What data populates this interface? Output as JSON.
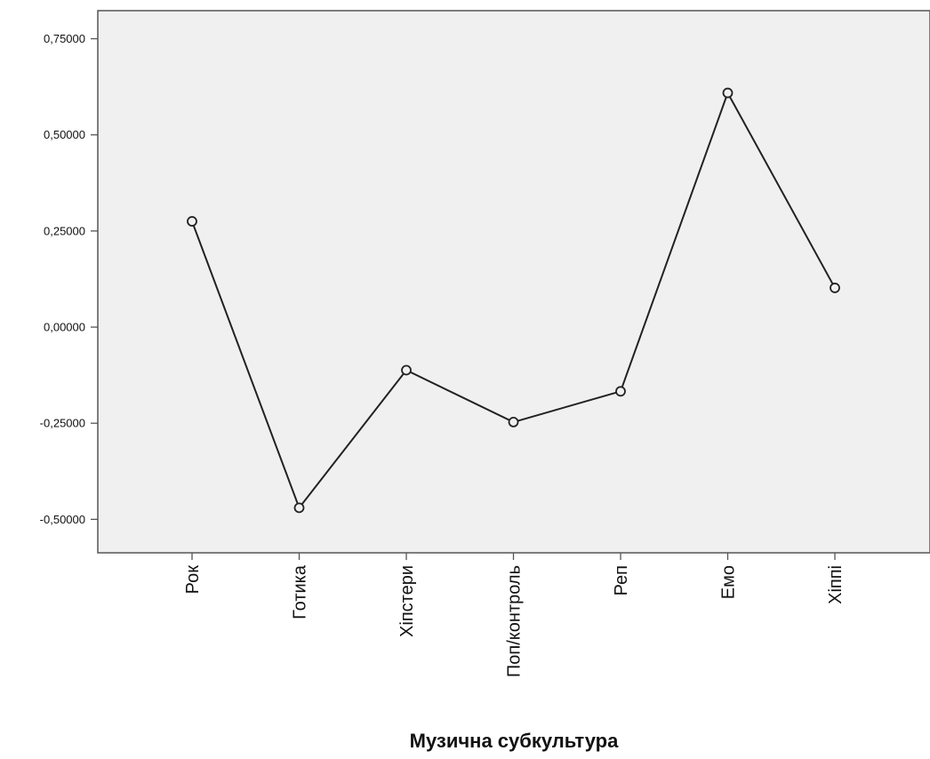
{
  "chart_data": {
    "type": "line",
    "title": "",
    "xlabel": "Музична субкультура",
    "ylabel": "",
    "categories": [
      "Рок",
      "Готика",
      "Хіпстери",
      "Поп/контроль",
      "Реп",
      "Емо",
      "Хіппі"
    ],
    "series": [
      {
        "values": [
          0.275,
          -0.47,
          -0.112,
          -0.247,
          -0.167,
          0.609,
          0.102
        ]
      }
    ],
    "y_ticks": [
      0.75,
      0.5,
      0.25,
      0.0,
      -0.25,
      -0.5
    ],
    "y_tick_labels": [
      "0,75000",
      "0,50000",
      "0,25000",
      "0,00000",
      "-0,25000",
      "-0,50000"
    ],
    "ylim": [
      -0.587,
      0.823
    ],
    "grid": false,
    "legend": "none",
    "markers": "open-circle",
    "colors": {
      "plot_background": "#f0f0f0",
      "line": "#222222",
      "frame": "#555555",
      "text": "#111111"
    }
  }
}
